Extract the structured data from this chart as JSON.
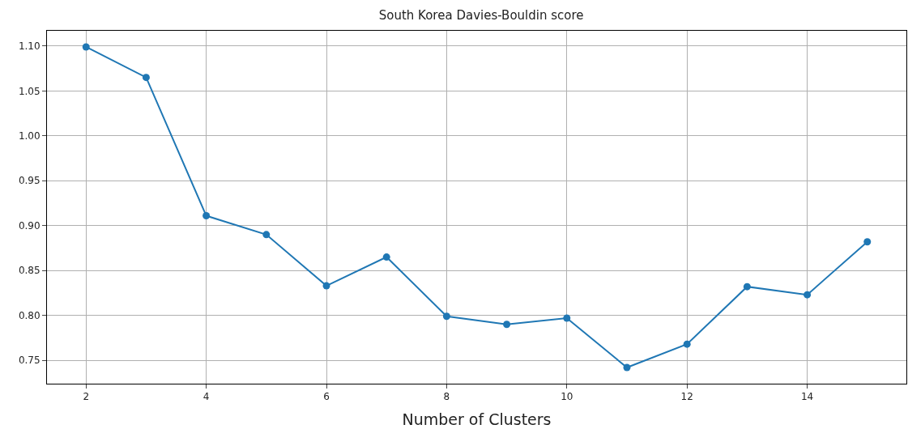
{
  "chart_data": {
    "type": "line",
    "title": "South Korea Davies-Bouldin score",
    "xlabel": "Number of Clusters",
    "x": [
      2,
      3,
      4,
      5,
      6,
      7,
      8,
      9,
      10,
      11,
      12,
      13,
      14,
      15
    ],
    "series": [
      {
        "color": "#1f77b4",
        "values": [
          1.099,
          1.065,
          0.911,
          0.89,
          0.833,
          0.865,
          0.799,
          0.79,
          0.797,
          0.742,
          0.768,
          0.832,
          0.823,
          0.882
        ]
      }
    ],
    "xlim": [
      1.35,
      15.65
    ],
    "xticks": [
      2,
      4,
      6,
      8,
      10,
      12,
      14
    ],
    "ylim": [
      0.724,
      1.117
    ],
    "yticks": [
      0.75,
      {
        "value": 0.8,
        "label": "0.80"
      },
      0.85,
      {
        "value": 0.9,
        "label": "0.90"
      },
      0.95,
      {
        "value": 1,
        "label": "1.00"
      },
      1.05,
      {
        "value": 1.1,
        "label": "1.10"
      }
    ],
    "grid": true,
    "marker": "circle",
    "line_style": "solid"
  }
}
